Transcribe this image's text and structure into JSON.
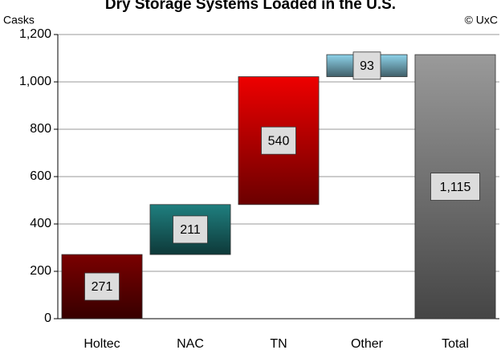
{
  "chart_data": {
    "type": "waterfall",
    "title": "Dry Storage Systems Loaded in the U.S.",
    "y_axis_label": "Casks",
    "annotation": "© UxC",
    "categories": [
      "Holtec",
      "NAC",
      "TN",
      "Other",
      "Total"
    ],
    "values": [
      271,
      211,
      540,
      93,
      1115
    ],
    "value_labels": [
      "271",
      "211",
      "540",
      "93",
      "1,115"
    ],
    "colors": [
      "#7a0000",
      "#1f7f7f",
      "#ee0000",
      "#8ed3ea",
      "#9a9a9a"
    ],
    "total_index": 4,
    "ylim": [
      0,
      1200
    ],
    "yticks": [
      0,
      200,
      400,
      600,
      800,
      {
        "value": 1000,
        "label": "1,000"
      },
      {
        "value": 1200,
        "label": "1,200"
      }
    ],
    "grid": true
  }
}
